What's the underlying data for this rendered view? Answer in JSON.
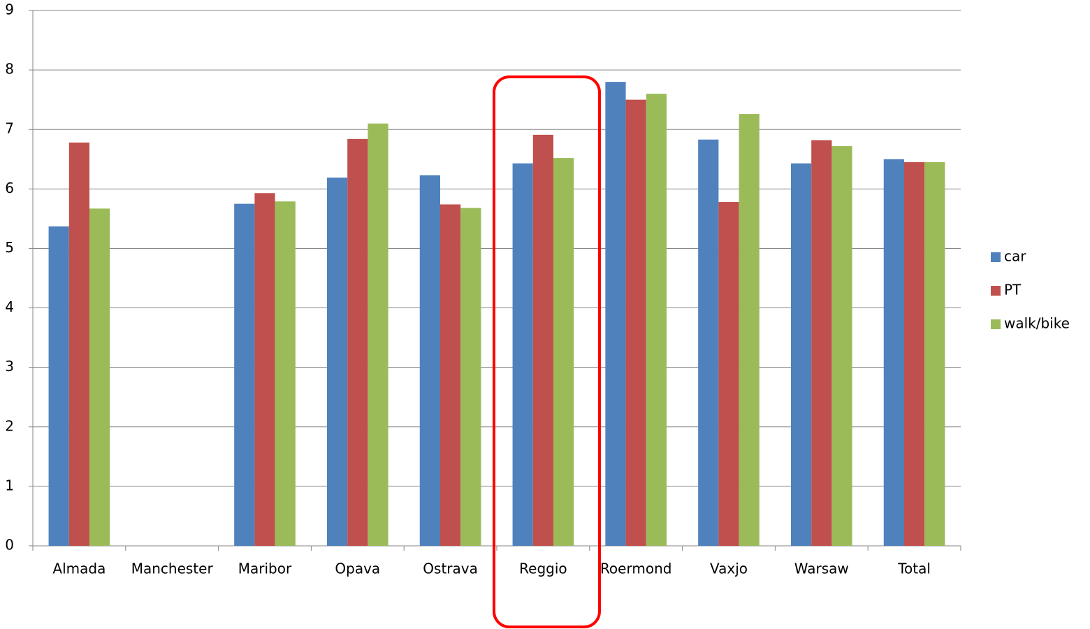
{
  "chart_data": {
    "type": "bar",
    "categories": [
      "Almada",
      "Manchester",
      "Maribor",
      "Opava",
      "Ostrava",
      "Reggio",
      "Roermond",
      "Vaxjo",
      "Warsaw",
      "Total"
    ],
    "series": [
      {
        "name": "car",
        "color": "#4f81bd",
        "values": [
          5.37,
          null,
          5.75,
          6.19,
          6.23,
          6.43,
          7.8,
          6.83,
          6.43,
          6.5
        ]
      },
      {
        "name": "PT",
        "color": "#c0504d",
        "values": [
          6.78,
          null,
          5.93,
          6.84,
          5.74,
          6.91,
          7.5,
          5.78,
          6.82,
          6.45
        ]
      },
      {
        "name": "walk/bike",
        "color": "#9bbb59",
        "values": [
          5.67,
          null,
          5.79,
          7.1,
          5.68,
          6.52,
          7.6,
          7.26,
          6.72,
          6.45
        ]
      }
    ],
    "ylim": [
      0,
      9
    ],
    "yticks": [
      0,
      1,
      2,
      3,
      4,
      5,
      6,
      7,
      8,
      9
    ],
    "grid": true,
    "legend": "right"
  }
}
